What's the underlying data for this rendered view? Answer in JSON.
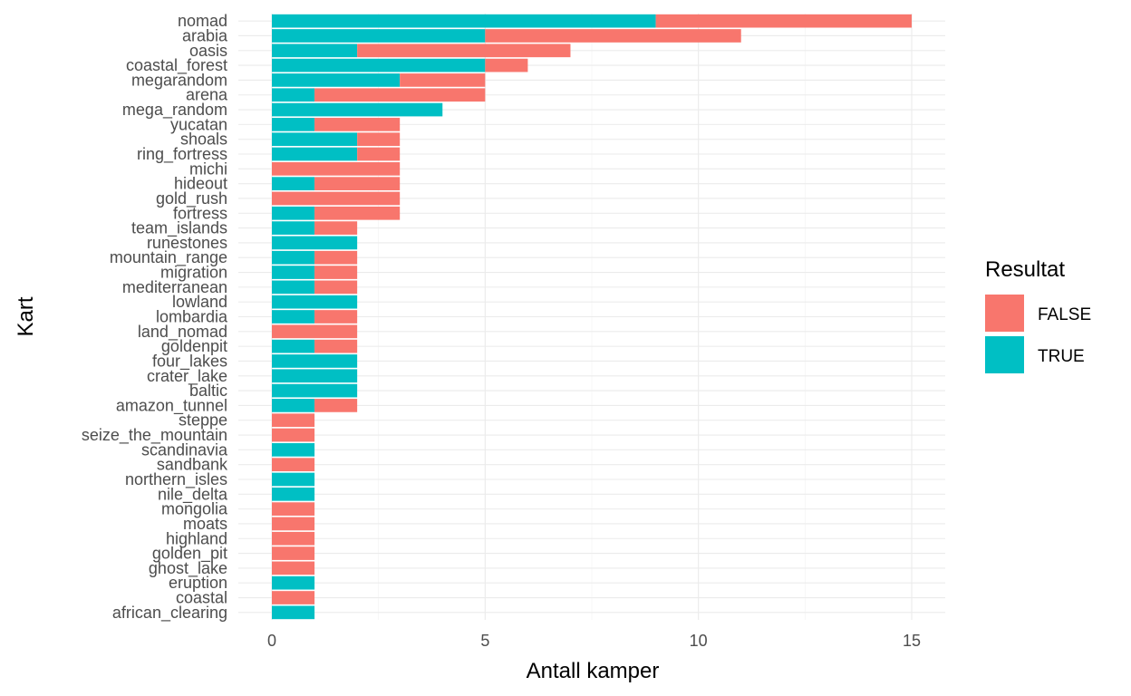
{
  "chart_data": {
    "type": "bar",
    "orientation": "horizontal",
    "stacked": true,
    "title": "",
    "xlabel": "Antall kamper",
    "ylabel": "Kart",
    "xlim": [
      0,
      15
    ],
    "x_ticks": [
      0,
      5,
      10,
      15
    ],
    "grid": true,
    "legend": {
      "title": "Resultat",
      "position": "right"
    },
    "categories": [
      "nomad",
      "arabia",
      "oasis",
      "coastal_forest",
      "megarandom",
      "arena",
      "mega_random",
      "yucatan",
      "shoals",
      "ring_fortress",
      "michi",
      "hideout",
      "gold_rush",
      "fortress",
      "team_islands",
      "runestones",
      "mountain_range",
      "migration",
      "mediterranean",
      "lowland",
      "lombardia",
      "land_nomad",
      "goldenpit",
      "four_lakes",
      "crater_lake",
      "baltic",
      "amazon_tunnel",
      "steppe",
      "seize_the_mountain",
      "scandinavia",
      "sandbank",
      "northern_isles",
      "nile_delta",
      "mongolia",
      "moats",
      "highland",
      "golden_pit",
      "ghost_lake",
      "eruption",
      "coastal",
      "african_clearing"
    ],
    "series": [
      {
        "name": "TRUE",
        "color": "#00BFC4",
        "values": [
          9,
          5,
          2,
          5,
          3,
          1,
          4,
          1,
          2,
          2,
          0,
          1,
          0,
          1,
          1,
          2,
          1,
          1,
          1,
          2,
          1,
          0,
          1,
          2,
          2,
          2,
          1,
          0,
          0,
          1,
          0,
          1,
          1,
          0,
          0,
          0,
          0,
          0,
          1,
          0,
          1
        ]
      },
      {
        "name": "FALSE",
        "color": "#F8766D",
        "values": [
          6,
          6,
          5,
          1,
          2,
          4,
          0,
          2,
          1,
          1,
          3,
          2,
          3,
          2,
          1,
          0,
          1,
          1,
          1,
          0,
          1,
          2,
          1,
          0,
          0,
          0,
          1,
          1,
          1,
          0,
          1,
          0,
          0,
          1,
          1,
          1,
          1,
          1,
          0,
          1,
          0
        ]
      }
    ]
  }
}
